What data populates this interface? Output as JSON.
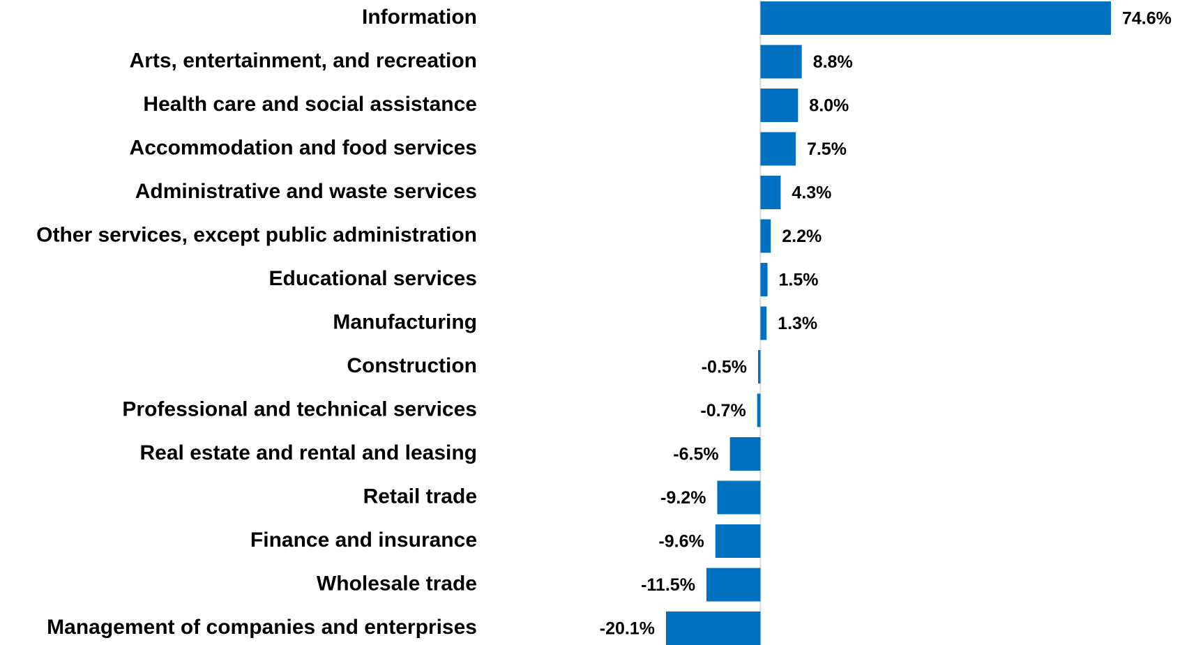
{
  "chart_data": {
    "type": "hbar",
    "categories": [
      "Information",
      "Arts, entertainment, and recreation",
      "Health care and social assistance",
      "Accommodation and food services",
      "Administrative and waste services",
      "Other services, except public administration",
      "Educational services",
      "Manufacturing",
      "Construction",
      "Professional and technical services",
      "Real estate and rental and leasing",
      "Retail trade",
      "Finance and insurance",
      "Wholesale trade",
      "Management of companies and enterprises"
    ],
    "values": [
      74.6,
      8.8,
      8.0,
      7.5,
      4.3,
      2.2,
      1.5,
      1.3,
      -0.5,
      -0.7,
      -6.5,
      -9.2,
      -9.6,
      -11.5,
      -20.1
    ],
    "value_labels": [
      "74.6%",
      "8.8%",
      "8.0%",
      "7.5%",
      "4.3%",
      "2.2%",
      "1.5%",
      "1.3%",
      "-0.5%",
      "-0.7%",
      "-6.5%",
      "-9.2%",
      "-9.6%",
      "-11.5%",
      "-20.1%"
    ],
    "color": "#0070c0"
  }
}
